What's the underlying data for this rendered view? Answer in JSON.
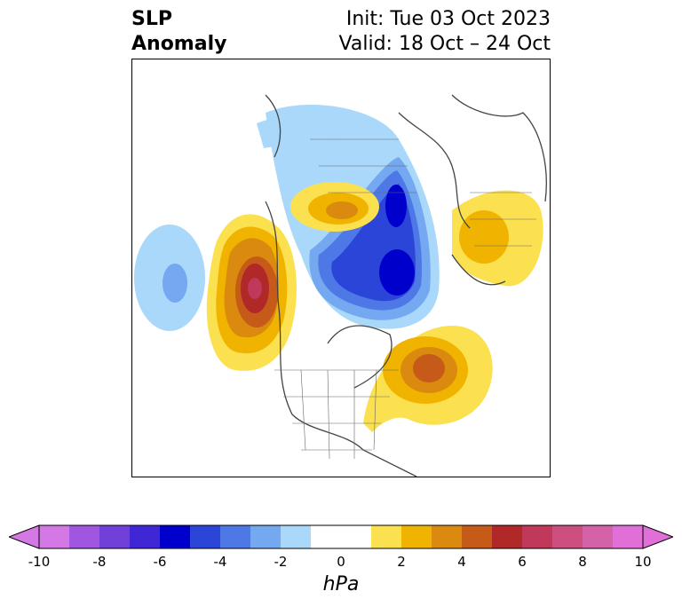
{
  "title": {
    "left_line1": "SLP",
    "left_line2": "Anomaly",
    "right_line1": "Init: Tue 03 Oct 2023",
    "right_line2": "Valid: 18 Oct – 24 Oct"
  },
  "colorbar": {
    "unit": "hPa",
    "colors": [
      "#d478e6",
      "#a056e0",
      "#7040d8",
      "#3f27d6",
      "#0000cd",
      "#2b45d8",
      "#4e78e6",
      "#74a8f0",
      "#a9d8fa",
      "#ffffff",
      "#ffffff",
      "#fbe050",
      "#f0b400",
      "#db8a10",
      "#c65a18",
      "#b02828",
      "#c0385a",
      "#cc4f80",
      "#d462a8",
      "#e070d8"
    ],
    "ticks": [
      "-10",
      "-8",
      "-6",
      "-4",
      "-2",
      "0",
      "2",
      "4",
      "6",
      "8",
      "10"
    ]
  },
  "map_features": {
    "anomaly_centers": [
      {
        "label": "low",
        "value": -5
      },
      {
        "label": "high",
        "value": 7
      },
      {
        "label": "high",
        "value": 5
      },
      {
        "label": "high",
        "value": 3
      },
      {
        "label": "low",
        "value": -2
      }
    ]
  }
}
